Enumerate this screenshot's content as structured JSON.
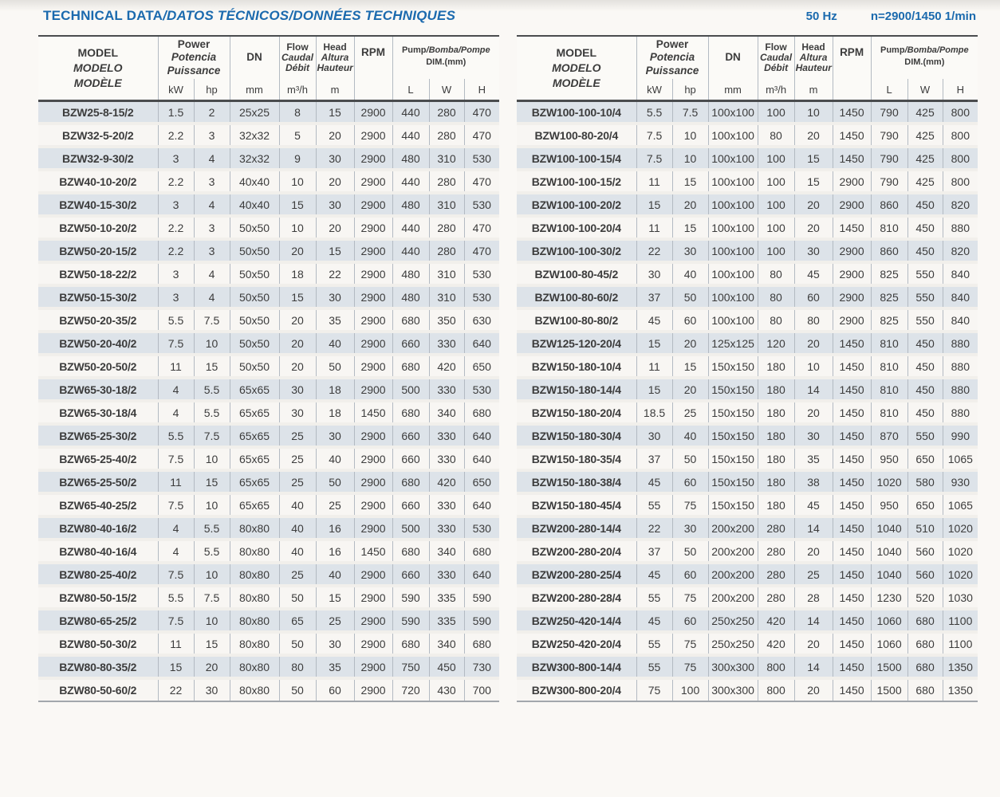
{
  "page": {
    "title_main": "TECHNICAL DATA",
    "title_sub": "/DATOS TÉCNICOS/DONNÉES TECHNIQUES",
    "frequency": "50 Hz",
    "speed": "n=2900/1450 1/min"
  },
  "header": {
    "model": [
      "MODEL",
      "MODELO",
      "MODÈLE"
    ],
    "power": [
      "Power",
      "Potencia",
      "Puissance"
    ],
    "power_units": [
      "kW",
      "hp"
    ],
    "dn": "DN",
    "dn_unit": "mm",
    "flow": [
      "Flow",
      "Caudal",
      "Débit"
    ],
    "flow_unit": "m³/h",
    "head": [
      "Head",
      "Altura",
      "Hauteur"
    ],
    "head_unit": "m",
    "rpm": "RPM",
    "dim_en": "Pump",
    "dim_rest": "/Bomba/Pompe",
    "dim_sub": "DIM.(mm)",
    "dim_units": [
      "L",
      "W",
      "H"
    ]
  },
  "columns": [
    "model",
    "power_kw",
    "power_hp",
    "dn_mm",
    "flow_m3h",
    "head_m",
    "rpm",
    "dim_l",
    "dim_w",
    "dim_h"
  ],
  "tables": {
    "left": {
      "rows": [
        [
          "BZW25-8-15/2",
          "1.5",
          "2",
          "25x25",
          "8",
          "15",
          "2900",
          "440",
          "280",
          "470"
        ],
        [
          "BZW32-5-20/2",
          "2.2",
          "3",
          "32x32",
          "5",
          "20",
          "2900",
          "440",
          "280",
          "470"
        ],
        [
          "BZW32-9-30/2",
          "3",
          "4",
          "32x32",
          "9",
          "30",
          "2900",
          "480",
          "310",
          "530"
        ],
        [
          "BZW40-10-20/2",
          "2.2",
          "3",
          "40x40",
          "10",
          "20",
          "2900",
          "440",
          "280",
          "470"
        ],
        [
          "BZW40-15-30/2",
          "3",
          "4",
          "40x40",
          "15",
          "30",
          "2900",
          "480",
          "310",
          "530"
        ],
        [
          "BZW50-10-20/2",
          "2.2",
          "3",
          "50x50",
          "10",
          "20",
          "2900",
          "440",
          "280",
          "470"
        ],
        [
          "BZW50-20-15/2",
          "2.2",
          "3",
          "50x50",
          "20",
          "15",
          "2900",
          "440",
          "280",
          "470"
        ],
        [
          "BZW50-18-22/2",
          "3",
          "4",
          "50x50",
          "18",
          "22",
          "2900",
          "480",
          "310",
          "530"
        ],
        [
          "BZW50-15-30/2",
          "3",
          "4",
          "50x50",
          "15",
          "30",
          "2900",
          "480",
          "310",
          "530"
        ],
        [
          "BZW50-20-35/2",
          "5.5",
          "7.5",
          "50x50",
          "20",
          "35",
          "2900",
          "680",
          "350",
          "630"
        ],
        [
          "BZW50-20-40/2",
          "7.5",
          "10",
          "50x50",
          "20",
          "40",
          "2900",
          "660",
          "330",
          "640"
        ],
        [
          "BZW50-20-50/2",
          "11",
          "15",
          "50x50",
          "20",
          "50",
          "2900",
          "680",
          "420",
          "650"
        ],
        [
          "BZW65-30-18/2",
          "4",
          "5.5",
          "65x65",
          "30",
          "18",
          "2900",
          "500",
          "330",
          "530"
        ],
        [
          "BZW65-30-18/4",
          "4",
          "5.5",
          "65x65",
          "30",
          "18",
          "1450",
          "680",
          "340",
          "680"
        ],
        [
          "BZW65-25-30/2",
          "5.5",
          "7.5",
          "65x65",
          "25",
          "30",
          "2900",
          "660",
          "330",
          "640"
        ],
        [
          "BZW65-25-40/2",
          "7.5",
          "10",
          "65x65",
          "25",
          "40",
          "2900",
          "660",
          "330",
          "640"
        ],
        [
          "BZW65-25-50/2",
          "11",
          "15",
          "65x65",
          "25",
          "50",
          "2900",
          "680",
          "420",
          "650"
        ],
        [
          "BZW65-40-25/2",
          "7.5",
          "10",
          "65x65",
          "40",
          "25",
          "2900",
          "660",
          "330",
          "640"
        ],
        [
          "BZW80-40-16/2",
          "4",
          "5.5",
          "80x80",
          "40",
          "16",
          "2900",
          "500",
          "330",
          "530"
        ],
        [
          "BZW80-40-16/4",
          "4",
          "5.5",
          "80x80",
          "40",
          "16",
          "1450",
          "680",
          "340",
          "680"
        ],
        [
          "BZW80-25-40/2",
          "7.5",
          "10",
          "80x80",
          "25",
          "40",
          "2900",
          "660",
          "330",
          "640"
        ],
        [
          "BZW80-50-15/2",
          "5.5",
          "7.5",
          "80x80",
          "50",
          "15",
          "2900",
          "590",
          "335",
          "590"
        ],
        [
          "BZW80-65-25/2",
          "7.5",
          "10",
          "80x80",
          "65",
          "25",
          "2900",
          "590",
          "335",
          "590"
        ],
        [
          "BZW80-50-30/2",
          "11",
          "15",
          "80x80",
          "50",
          "30",
          "2900",
          "680",
          "340",
          "680"
        ],
        [
          "BZW80-80-35/2",
          "15",
          "20",
          "80x80",
          "80",
          "35",
          "2900",
          "750",
          "450",
          "730"
        ],
        [
          "BZW80-50-60/2",
          "22",
          "30",
          "80x80",
          "50",
          "60",
          "2900",
          "720",
          "430",
          "700"
        ]
      ]
    },
    "right": {
      "rows": [
        [
          "BZW100-100-10/4",
          "5.5",
          "7.5",
          "100x100",
          "100",
          "10",
          "1450",
          "790",
          "425",
          "800"
        ],
        [
          "BZW100-80-20/4",
          "7.5",
          "10",
          "100x100",
          "80",
          "20",
          "1450",
          "790",
          "425",
          "800"
        ],
        [
          "BZW100-100-15/4",
          "7.5",
          "10",
          "100x100",
          "100",
          "15",
          "1450",
          "790",
          "425",
          "800"
        ],
        [
          "BZW100-100-15/2",
          "11",
          "15",
          "100x100",
          "100",
          "15",
          "2900",
          "790",
          "425",
          "800"
        ],
        [
          "BZW100-100-20/2",
          "15",
          "20",
          "100x100",
          "100",
          "20",
          "2900",
          "860",
          "450",
          "820"
        ],
        [
          "BZW100-100-20/4",
          "11",
          "15",
          "100x100",
          "100",
          "20",
          "1450",
          "810",
          "450",
          "880"
        ],
        [
          "BZW100-100-30/2",
          "22",
          "30",
          "100x100",
          "100",
          "30",
          "2900",
          "860",
          "450",
          "820"
        ],
        [
          "BZW100-80-45/2",
          "30",
          "40",
          "100x100",
          "80",
          "45",
          "2900",
          "825",
          "550",
          "840"
        ],
        [
          "BZW100-80-60/2",
          "37",
          "50",
          "100x100",
          "80",
          "60",
          "2900",
          "825",
          "550",
          "840"
        ],
        [
          "BZW100-80-80/2",
          "45",
          "60",
          "100x100",
          "80",
          "80",
          "2900",
          "825",
          "550",
          "840"
        ],
        [
          "BZW125-120-20/4",
          "15",
          "20",
          "125x125",
          "120",
          "20",
          "1450",
          "810",
          "450",
          "880"
        ],
        [
          "BZW150-180-10/4",
          "11",
          "15",
          "150x150",
          "180",
          "10",
          "1450",
          "810",
          "450",
          "880"
        ],
        [
          "BZW150-180-14/4",
          "15",
          "20",
          "150x150",
          "180",
          "14",
          "1450",
          "810",
          "450",
          "880"
        ],
        [
          "BZW150-180-20/4",
          "18.5",
          "25",
          "150x150",
          "180",
          "20",
          "1450",
          "810",
          "450",
          "880"
        ],
        [
          "BZW150-180-30/4",
          "30",
          "40",
          "150x150",
          "180",
          "30",
          "1450",
          "870",
          "550",
          "990"
        ],
        [
          "BZW150-180-35/4",
          "37",
          "50",
          "150x150",
          "180",
          "35",
          "1450",
          "950",
          "650",
          "1065"
        ],
        [
          "BZW150-180-38/4",
          "45",
          "60",
          "150x150",
          "180",
          "38",
          "1450",
          "1020",
          "580",
          "930"
        ],
        [
          "BZW150-180-45/4",
          "55",
          "75",
          "150x150",
          "180",
          "45",
          "1450",
          "950",
          "650",
          "1065"
        ],
        [
          "BZW200-280-14/4",
          "22",
          "30",
          "200x200",
          "280",
          "14",
          "1450",
          "1040",
          "510",
          "1020"
        ],
        [
          "BZW200-280-20/4",
          "37",
          "50",
          "200x200",
          "280",
          "20",
          "1450",
          "1040",
          "560",
          "1020"
        ],
        [
          "BZW200-280-25/4",
          "45",
          "60",
          "200x200",
          "280",
          "25",
          "1450",
          "1040",
          "560",
          "1020"
        ],
        [
          "BZW200-280-28/4",
          "55",
          "75",
          "200x200",
          "280",
          "28",
          "1450",
          "1230",
          "520",
          "1030"
        ],
        [
          "BZW250-420-14/4",
          "45",
          "60",
          "250x250",
          "420",
          "14",
          "1450",
          "1060",
          "680",
          "1100"
        ],
        [
          "BZW250-420-20/4",
          "55",
          "75",
          "250x250",
          "420",
          "20",
          "1450",
          "1060",
          "680",
          "1100"
        ],
        [
          "BZW300-800-14/4",
          "55",
          "75",
          "300x300",
          "800",
          "14",
          "1450",
          "1500",
          "680",
          "1350"
        ],
        [
          "BZW300-800-20/4",
          "75",
          "100",
          "300x300",
          "800",
          "20",
          "1450",
          "1500",
          "680",
          "1350"
        ]
      ]
    }
  },
  "colors": {
    "accent_blue": "#1b6aae",
    "row_stripe": "#dde3e9",
    "row_plain": "#f8f6f3",
    "rule_dark": "#4a4c4e",
    "rule_light": "#b3bac2"
  }
}
